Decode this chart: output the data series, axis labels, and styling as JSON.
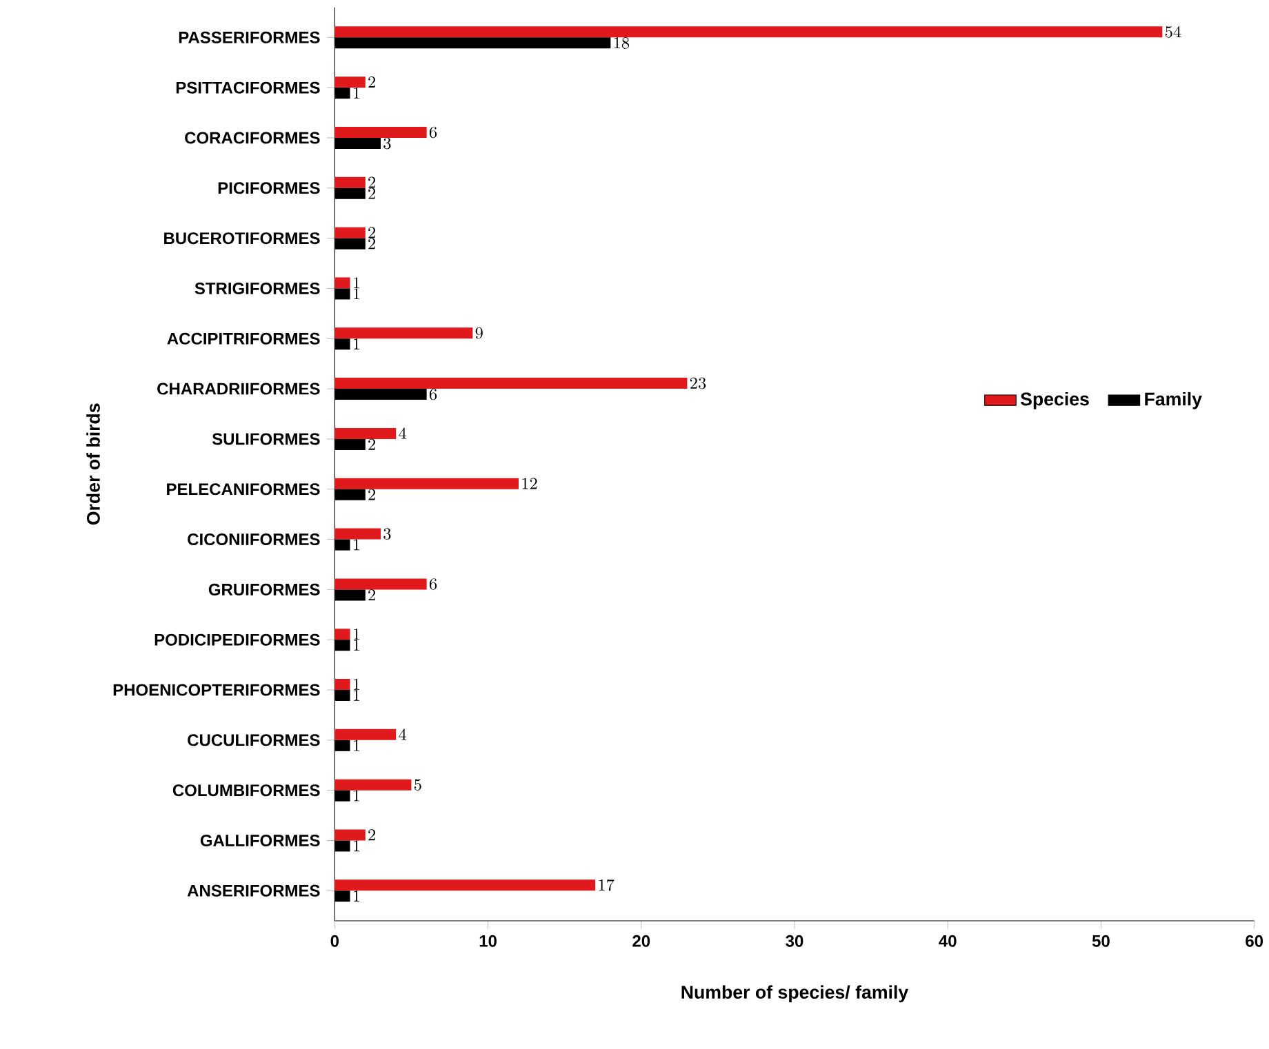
{
  "chart_data": {
    "type": "bar",
    "orientation": "horizontal",
    "xlabel": "Number of species/ family",
    "ylabel": "Order of birds",
    "categories": [
      "PASSERIFORMES",
      "PSITTACIFORMES",
      "CORACIFORMES",
      "PICIFORMES",
      "BUCEROTIFORMES",
      "STRIGIFORMES",
      "ACCIPITRIFORMES",
      "CHARADRIIFORMES",
      "SULIFORMES",
      "PELECANIFORMES",
      "CICONIIFORMES",
      "GRUIFORMES",
      "PODICIPEDIFORMES",
      "PHOENICOPTERIFORMES",
      "CUCULIFORMES",
      "COLUMBIFORMES",
      "GALLIFORMES",
      "ANSERIFORMES"
    ],
    "series": [
      {
        "name": "Species",
        "color": "#e0191c",
        "values": [
          54,
          2,
          6,
          2,
          2,
          1,
          9,
          23,
          4,
          12,
          3,
          6,
          1,
          1,
          4,
          5,
          2,
          17
        ]
      },
      {
        "name": "Family",
        "color": "#000000",
        "values": [
          18,
          1,
          3,
          2,
          2,
          1,
          1,
          6,
          2,
          2,
          1,
          2,
          1,
          1,
          1,
          1,
          1,
          1
        ]
      }
    ],
    "xlim": [
      0,
      60
    ],
    "xticks": [
      0,
      10,
      20,
      30,
      40,
      50,
      60
    ],
    "data_labels": true,
    "legend": "right"
  }
}
